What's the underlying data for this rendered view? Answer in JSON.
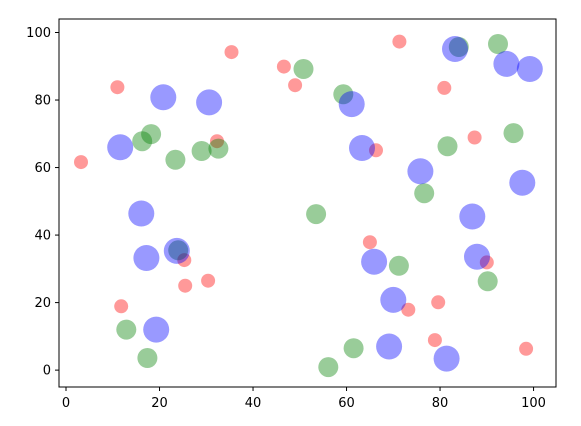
{
  "chart_data": {
    "type": "scatter",
    "title": "",
    "xlabel": "",
    "ylabel": "",
    "xlim": [
      -1.5,
      104.8
    ],
    "ylim": [
      -5,
      104
    ],
    "grid": false,
    "x_ticks": [
      0,
      20,
      40,
      60,
      80,
      100
    ],
    "y_ticks": [
      0,
      20,
      40,
      60,
      80,
      100
    ],
    "series": [
      {
        "color": "#ff0000",
        "opacity": 0.4,
        "size": "small",
        "points": [
          [
            3.2,
            61.6
          ],
          [
            11.0,
            83.8
          ],
          [
            11.8,
            18.9
          ],
          [
            25.3,
            32.6
          ],
          [
            25.5,
            25.0
          ],
          [
            30.4,
            26.5
          ],
          [
            32.3,
            67.8
          ],
          [
            35.4,
            94.2
          ],
          [
            46.6,
            89.9
          ],
          [
            49.0,
            84.4
          ],
          [
            65.0,
            37.9
          ],
          [
            66.3,
            65.1
          ],
          [
            71.3,
            97.3
          ],
          [
            73.2,
            17.9
          ],
          [
            78.9,
            8.9
          ],
          [
            79.6,
            20.1
          ],
          [
            80.9,
            83.6
          ],
          [
            87.4,
            68.9
          ],
          [
            90.0,
            31.9
          ],
          [
            98.4,
            6.3
          ]
        ]
      },
      {
        "color": "#008000",
        "opacity": 0.4,
        "size": "medium",
        "points": [
          [
            12.9,
            12.0
          ],
          [
            16.3,
            67.8
          ],
          [
            17.4,
            3.6
          ],
          [
            18.2,
            69.9
          ],
          [
            23.4,
            62.3
          ],
          [
            24.0,
            35.5
          ],
          [
            29.0,
            64.9
          ],
          [
            32.6,
            65.6
          ],
          [
            50.8,
            89.2
          ],
          [
            53.5,
            46.2
          ],
          [
            56.1,
            0.9
          ],
          [
            59.3,
            81.7
          ],
          [
            61.5,
            6.5
          ],
          [
            71.2,
            30.9
          ],
          [
            76.6,
            52.4
          ],
          [
            81.6,
            66.3
          ],
          [
            84.0,
            95.7
          ],
          [
            92.4,
            96.6
          ],
          [
            90.2,
            26.3
          ],
          [
            95.7,
            70.2
          ]
        ]
      },
      {
        "color": "#0000ff",
        "opacity": 0.4,
        "size": "large",
        "points": [
          [
            11.6,
            66.0
          ],
          [
            16.1,
            46.4
          ],
          [
            17.2,
            33.2
          ],
          [
            19.3,
            12.0
          ],
          [
            20.8,
            80.8
          ],
          [
            23.7,
            35.3
          ],
          [
            30.6,
            79.3
          ],
          [
            61.1,
            78.8
          ],
          [
            63.3,
            65.8
          ],
          [
            65.9,
            32.1
          ],
          [
            69.1,
            7.0
          ],
          [
            70.0,
            20.8
          ],
          [
            75.8,
            58.9
          ],
          [
            81.4,
            3.4
          ],
          [
            83.2,
            95.1
          ],
          [
            86.9,
            45.5
          ],
          [
            87.9,
            33.6
          ],
          [
            94.2,
            90.7
          ],
          [
            97.6,
            55.5
          ],
          [
            99.2,
            89.2
          ]
        ]
      }
    ]
  }
}
